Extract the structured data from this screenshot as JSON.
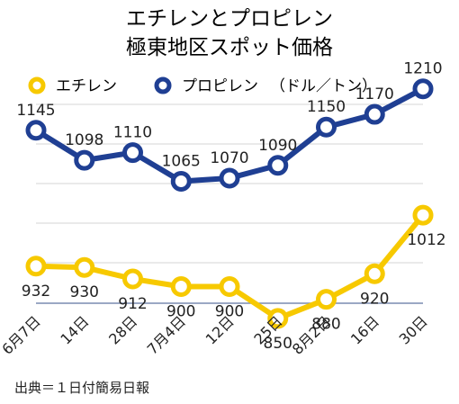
{
  "chart_data": {
    "type": "line",
    "title_lines": [
      "エチレンとプロピレン",
      "極東地区スポット価格"
    ],
    "unit_note": "（ドル／トン）",
    "categories": [
      "6月7日",
      "14日",
      "28日",
      "7月4日",
      "12日",
      "25日",
      "8月2日",
      "16日",
      "30日"
    ],
    "series": [
      {
        "name": "エチレン",
        "color": "#F7C900",
        "values": [
          932,
          930,
          912,
          900,
          900,
          850,
          880,
          920,
          1012
        ],
        "label_position": "below"
      },
      {
        "name": "プロピレン",
        "color": "#1F3F93",
        "values": [
          1145,
          1098,
          1110,
          1065,
          1070,
          1090,
          1150,
          1170,
          1210
        ],
        "label_position": "above"
      }
    ],
    "legend": "top",
    "grid": true,
    "xlabel": "",
    "ylabel": ""
  },
  "source": "出典＝１日付簡易日報"
}
